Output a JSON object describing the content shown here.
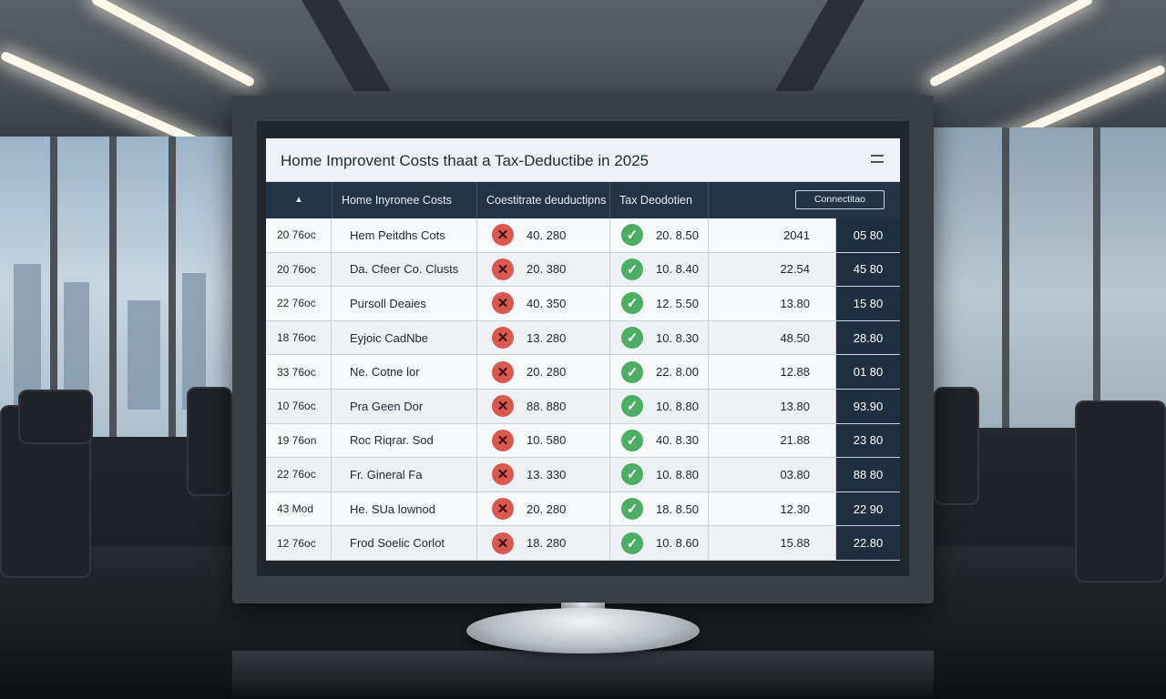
{
  "screen": {
    "title": "Home Improvent Costs thaat a Tax-Deductibe in 2025",
    "menu_icon": "hamburger-icon"
  },
  "table": {
    "sort_icon": "▲",
    "headers": [
      "Home Inyronee Costs",
      "Coestitrate deuductipns",
      "Tax Deodotien"
    ],
    "header_button": "Connectitao",
    "rows": [
      {
        "id": "20 76oc",
        "name": "Hem Peitdhs Cots",
        "not_deductible": "40. 280",
        "deductible": "20. 8.50",
        "amount": "2041",
        "total": "05 80"
      },
      {
        "id": "20 76oc",
        "name": "Da. Cfeer Co. Clusts",
        "not_deductible": "20. 380",
        "deductible": "10. 8.40",
        "amount": "22.54",
        "total": "45 80"
      },
      {
        "id": "22 76oc",
        "name": "Pursoll Deaies",
        "not_deductible": "40. 350",
        "deductible": "12. 5.50",
        "amount": "13.80",
        "total": "15 80"
      },
      {
        "id": "18 76oc",
        "name": "Eyjoic CadNbe",
        "not_deductible": "13. 280",
        "deductible": "10. 8.30",
        "amount": "48.50",
        "total": "28.80"
      },
      {
        "id": "33 76oc",
        "name": "Ne. Cotne lor",
        "not_deductible": "20. 280",
        "deductible": "22. 8.00",
        "amount": "12.88",
        "total": "01 80"
      },
      {
        "id": "10 76oc",
        "name": "Pra Geen Dor",
        "not_deductible": "88. 880",
        "deductible": "10. 8.80",
        "amount": "13.80",
        "total": "93.90"
      },
      {
        "id": "19 76on",
        "name": "Roc Riqrar. Sod",
        "not_deductible": "10. 580",
        "deductible": "40. 8.30",
        "amount": "21.88",
        "total": "23 80"
      },
      {
        "id": "22 76oc",
        "name": "Fr. Gineral Fa",
        "not_deductible": "13. 330",
        "deductible": "10. 8.80",
        "amount": "03.80",
        "total": "88 80"
      },
      {
        "id": "43 Mod",
        "name": "He. SUa lownod",
        "not_deductible": "20. 280",
        "deductible": "18. 8.50",
        "amount": "12.30",
        "total": "22 90"
      },
      {
        "id": "12 76oc",
        "name": "Frod Soelic Corlot",
        "not_deductible": "18. 280",
        "deductible": "10. 8.60",
        "amount": "15.88",
        "total": "22.80"
      }
    ]
  }
}
